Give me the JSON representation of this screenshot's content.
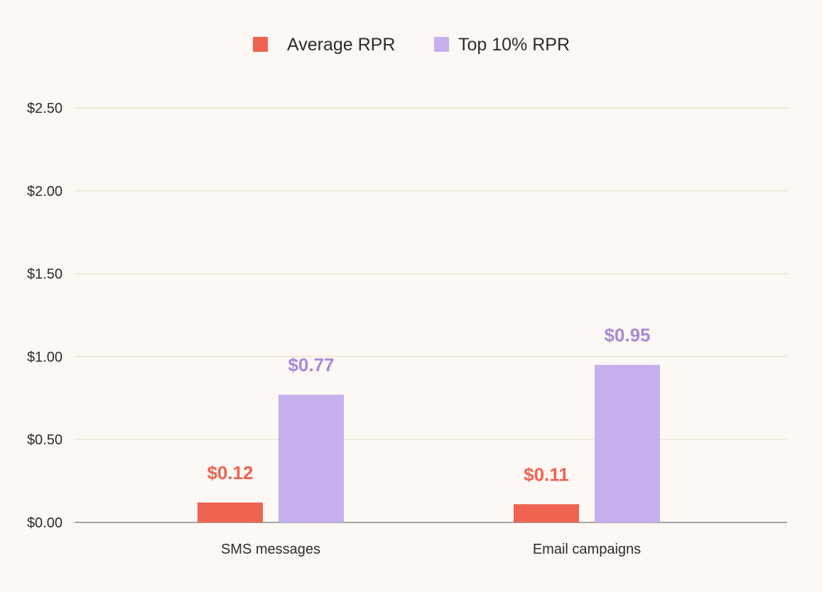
{
  "chart_data": {
    "type": "bar",
    "title": "",
    "xlabel": "",
    "ylabel": "",
    "categories": [
      "SMS messages",
      "Email campaigns"
    ],
    "series": [
      {
        "name": "Average RPR",
        "color": "#ef6351",
        "values": [
          0.12,
          0.11
        ],
        "labels": [
          "$0.12",
          "$0.11"
        ]
      },
      {
        "name": "Top 10% RPR",
        "color": "#c6b0ee",
        "label_color": "#a48ad8",
        "values": [
          0.77,
          0.95
        ],
        "labels": [
          "$0.77",
          "$0.95"
        ]
      }
    ],
    "ylim": [
      0,
      2.5
    ],
    "yticks": [
      0,
      0.5,
      1.0,
      1.5,
      2.0,
      2.5
    ],
    "ytick_labels": [
      "$0.00",
      "$0.50",
      "$1.00",
      "$1.50",
      "$2.00",
      "$2.50"
    ],
    "grid": true,
    "legend": "top-center",
    "gridline_color": "#e6e2c8",
    "axis_color": "#8a8a8a"
  }
}
